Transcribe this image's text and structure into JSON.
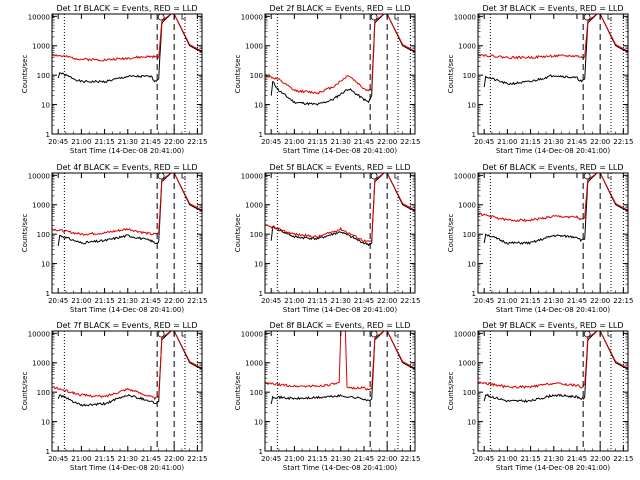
{
  "figure": {
    "xlabel": "Start Time (14-Dec-08 20:41:00)",
    "ylabel": "Counts/sec",
    "x_tick_labels": [
      "20:45",
      "21:00",
      "21:15",
      "21:30",
      "21:45",
      "22:00",
      "22:15"
    ],
    "y_tick_labels": [
      "1",
      "10",
      "100",
      "1000",
      "10000"
    ],
    "colors": {
      "events": "#000000",
      "lld": "#dd0000",
      "axes": "#000000",
      "background": "#ffffff"
    }
  },
  "chart_data": [
    {
      "type": "line",
      "title": "Det 1f BLACK = Events, RED = LLD",
      "y_scale": "log",
      "ylim": [
        1,
        12000
      ],
      "xlim": [
        "20:41",
        "22:18"
      ],
      "series": [
        {
          "name": "Events",
          "color": "#000000",
          "x": [
            "20:45",
            "20:46",
            "21:00",
            "21:15",
            "21:30",
            "21:45",
            "21:48",
            "21:50",
            "21:52",
            "21:58",
            "22:00",
            "22:10",
            "22:18"
          ],
          "y": [
            80,
            120,
            60,
            60,
            90,
            90,
            60,
            80,
            6000,
            12000,
            12000,
            1000,
            600
          ]
        },
        {
          "name": "LLD",
          "color": "#dd0000",
          "x": [
            "20:41",
            "21:00",
            "21:15",
            "21:30",
            "21:45",
            "21:48",
            "21:50",
            "21:52",
            "21:58",
            "22:00",
            "22:10",
            "22:18"
          ],
          "y": [
            500,
            350,
            330,
            380,
            430,
            420,
            400,
            7000,
            12000,
            12000,
            1100,
            650
          ]
        }
      ]
    },
    {
      "type": "line",
      "title": "Det 2f BLACK = Events, RED = LLD",
      "y_scale": "log",
      "ylim": [
        1,
        12000
      ],
      "xlim": [
        "20:41",
        "22:18"
      ],
      "series": [
        {
          "name": "Events",
          "color": "#000000",
          "x": [
            "20:45",
            "20:46",
            "20:50",
            "21:00",
            "21:15",
            "21:25",
            "21:35",
            "21:45",
            "21:48",
            "21:50",
            "21:52",
            "21:58",
            "22:00",
            "22:10",
            "22:18"
          ],
          "y": [
            20,
            60,
            30,
            12,
            10,
            15,
            35,
            15,
            12,
            20,
            6000,
            12000,
            12000,
            1000,
            600
          ]
        },
        {
          "name": "LLD",
          "color": "#dd0000",
          "x": [
            "20:41",
            "20:50",
            "21:00",
            "21:15",
            "21:25",
            "21:35",
            "21:45",
            "21:48",
            "21:50",
            "21:52",
            "21:58",
            "22:00",
            "22:10",
            "22:18"
          ],
          "y": [
            100,
            70,
            30,
            25,
            40,
            100,
            35,
            30,
            35,
            7000,
            12000,
            12000,
            1100,
            650
          ]
        }
      ]
    },
    {
      "type": "line",
      "title": "Det 3f BLACK = Events, RED = LLD",
      "y_scale": "log",
      "ylim": [
        1,
        12000
      ],
      "xlim": [
        "20:41",
        "22:18"
      ],
      "series": [
        {
          "name": "Events",
          "color": "#000000",
          "x": [
            "20:45",
            "20:46",
            "21:00",
            "21:15",
            "21:30",
            "21:45",
            "21:48",
            "21:50",
            "21:52",
            "21:58",
            "22:00",
            "22:10",
            "22:18"
          ],
          "y": [
            40,
            90,
            50,
            60,
            100,
            80,
            60,
            70,
            6000,
            12000,
            12000,
            1000,
            600
          ]
        },
        {
          "name": "LLD",
          "color": "#dd0000",
          "x": [
            "20:41",
            "21:00",
            "21:15",
            "21:30",
            "21:45",
            "21:48",
            "21:50",
            "21:52",
            "21:58",
            "22:00",
            "22:10",
            "22:18"
          ],
          "y": [
            500,
            400,
            400,
            450,
            450,
            400,
            400,
            7000,
            12000,
            12000,
            1100,
            650
          ]
        }
      ]
    },
    {
      "type": "line",
      "title": "Det 4f BLACK = Events, RED = LLD",
      "y_scale": "log",
      "ylim": [
        1,
        12000
      ],
      "xlim": [
        "20:41",
        "22:18"
      ],
      "series": [
        {
          "name": "Events",
          "color": "#000000",
          "x": [
            "20:45",
            "20:46",
            "21:00",
            "21:15",
            "21:30",
            "21:45",
            "21:48",
            "21:50",
            "21:52",
            "21:58",
            "22:00",
            "22:10",
            "22:18"
          ],
          "y": [
            40,
            90,
            50,
            60,
            90,
            60,
            50,
            55,
            6000,
            12000,
            12000,
            1000,
            600
          ]
        },
        {
          "name": "LLD",
          "color": "#dd0000",
          "x": [
            "20:41",
            "21:00",
            "21:15",
            "21:30",
            "21:45",
            "21:48",
            "21:50",
            "21:52",
            "21:58",
            "22:00",
            "22:10",
            "22:18"
          ],
          "y": [
            150,
            100,
            110,
            150,
            100,
            100,
            110,
            7000,
            12000,
            12000,
            1100,
            650
          ]
        }
      ]
    },
    {
      "type": "line",
      "title": "Det 5f BLACK = Events, RED = LLD",
      "y_scale": "log",
      "ylim": [
        1,
        12000
      ],
      "xlim": [
        "20:41",
        "22:18"
      ],
      "series": [
        {
          "name": "Events",
          "color": "#000000",
          "x": [
            "20:45",
            "20:46",
            "21:00",
            "21:15",
            "21:30",
            "21:45",
            "21:48",
            "21:50",
            "21:52",
            "21:58",
            "22:00",
            "22:10",
            "22:18"
          ],
          "y": [
            60,
            180,
            80,
            70,
            120,
            50,
            45,
            50,
            6000,
            12000,
            12000,
            1000,
            600
          ]
        },
        {
          "name": "LLD",
          "color": "#dd0000",
          "x": [
            "20:41",
            "21:00",
            "21:15",
            "21:30",
            "21:45",
            "21:48",
            "21:50",
            "21:52",
            "21:58",
            "22:00",
            "22:10",
            "22:18"
          ],
          "y": [
            200,
            100,
            80,
            150,
            60,
            55,
            60,
            7000,
            12000,
            12000,
            1100,
            650
          ]
        }
      ]
    },
    {
      "type": "line",
      "title": "Det 6f BLACK = Events, RED = LLD",
      "y_scale": "log",
      "ylim": [
        1,
        12000
      ],
      "xlim": [
        "20:41",
        "22:18"
      ],
      "series": [
        {
          "name": "Events",
          "color": "#000000",
          "x": [
            "20:45",
            "20:46",
            "21:00",
            "21:15",
            "21:30",
            "21:45",
            "21:48",
            "21:50",
            "21:52",
            "21:58",
            "22:00",
            "22:10",
            "22:18"
          ],
          "y": [
            50,
            100,
            50,
            50,
            90,
            80,
            60,
            70,
            6000,
            12000,
            12000,
            1000,
            600
          ]
        },
        {
          "name": "LLD",
          "color": "#dd0000",
          "x": [
            "20:41",
            "21:00",
            "21:15",
            "21:30",
            "21:45",
            "21:48",
            "21:50",
            "21:52",
            "21:58",
            "22:00",
            "22:10",
            "22:18"
          ],
          "y": [
            500,
            300,
            300,
            400,
            380,
            300,
            350,
            7000,
            12000,
            12000,
            1100,
            650
          ]
        }
      ]
    },
    {
      "type": "line",
      "title": "Det 7f BLACK = Events, RED = LLD",
      "y_scale": "log",
      "ylim": [
        1,
        12000
      ],
      "xlim": [
        "20:41",
        "22:18"
      ],
      "series": [
        {
          "name": "Events",
          "color": "#000000",
          "x": [
            "20:45",
            "20:46",
            "21:00",
            "21:15",
            "21:30",
            "21:45",
            "21:48",
            "21:50",
            "21:52",
            "21:58",
            "22:00",
            "22:10",
            "22:18"
          ],
          "y": [
            60,
            80,
            35,
            40,
            80,
            50,
            40,
            50,
            6000,
            12000,
            12000,
            1000,
            600
          ]
        },
        {
          "name": "LLD",
          "color": "#dd0000",
          "x": [
            "20:41",
            "21:00",
            "21:15",
            "21:30",
            "21:45",
            "21:48",
            "21:50",
            "21:52",
            "21:58",
            "22:00",
            "22:10",
            "22:18"
          ],
          "y": [
            150,
            80,
            70,
            130,
            70,
            60,
            70,
            7000,
            12000,
            12000,
            1100,
            650
          ]
        }
      ]
    },
    {
      "type": "line",
      "title": "Det 8f BLACK = Events, RED = LLD",
      "y_scale": "log",
      "ylim": [
        1,
        12000
      ],
      "xlim": [
        "20:41",
        "22:18"
      ],
      "series": [
        {
          "name": "Events",
          "color": "#000000",
          "x": [
            "20:45",
            "20:46",
            "21:00",
            "21:15",
            "21:29",
            "21:35",
            "21:45",
            "21:48",
            "21:50",
            "21:52",
            "21:58",
            "22:00",
            "22:10",
            "22:18"
          ],
          "y": [
            40,
            70,
            60,
            65,
            75,
            70,
            60,
            50,
            55,
            6000,
            12000,
            12000,
            1000,
            600
          ]
        },
        {
          "name": "LLD",
          "color": "#dd0000",
          "x": [
            "20:41",
            "21:00",
            "21:15",
            "21:29",
            "21:30",
            "21:33",
            "21:34",
            "21:35",
            "21:45",
            "21:48",
            "21:50",
            "21:52",
            "21:58",
            "22:00",
            "22:10",
            "22:18"
          ],
          "y": [
            200,
            160,
            160,
            200,
            12000,
            12000,
            150,
            140,
            140,
            120,
            130,
            7000,
            12000,
            12000,
            1100,
            650
          ]
        }
      ]
    },
    {
      "type": "line",
      "title": "Det 9f BLACK = Events, RED = LLD",
      "y_scale": "log",
      "ylim": [
        1,
        12000
      ],
      "xlim": [
        "20:41",
        "22:18"
      ],
      "series": [
        {
          "name": "Events",
          "color": "#000000",
          "x": [
            "20:45",
            "20:46",
            "21:00",
            "21:15",
            "21:30",
            "21:45",
            "21:48",
            "21:50",
            "21:52",
            "21:58",
            "22:00",
            "22:10",
            "22:18"
          ],
          "y": [
            50,
            80,
            50,
            50,
            80,
            70,
            60,
            65,
            6000,
            12000,
            12000,
            1000,
            600
          ]
        },
        {
          "name": "LLD",
          "color": "#dd0000",
          "x": [
            "20:41",
            "21:00",
            "21:15",
            "21:30",
            "21:45",
            "21:48",
            "21:50",
            "21:52",
            "21:58",
            "22:00",
            "22:10",
            "22:18"
          ],
          "y": [
            220,
            150,
            150,
            200,
            170,
            150,
            170,
            7000,
            12000,
            12000,
            1100,
            650
          ]
        }
      ]
    }
  ]
}
